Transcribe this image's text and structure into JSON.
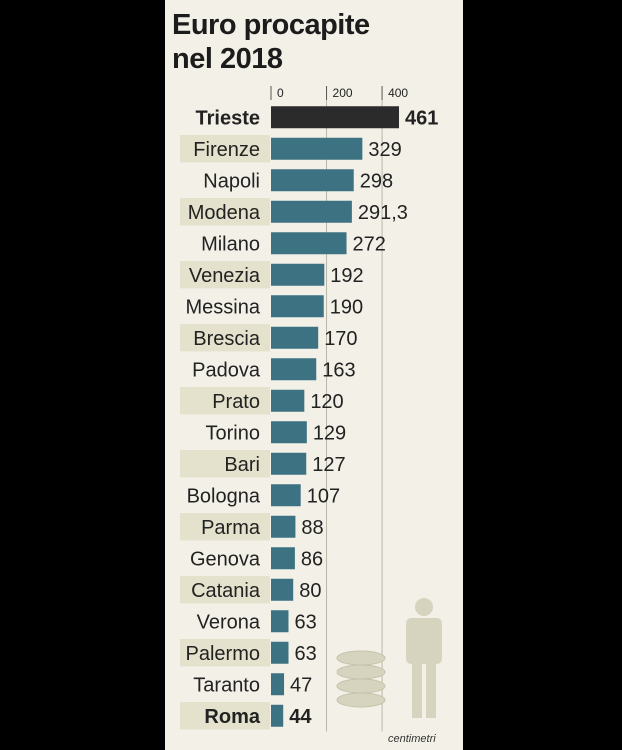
{
  "title_lines": [
    "Euro procapite",
    "nel 2018"
  ],
  "credit": "centimetri",
  "colors": {
    "background": "#f3f1e7",
    "stripe": "#e4e2cc",
    "bar": "#3d7283",
    "highlight_bar": "#2b2b2b",
    "text": "#222222"
  },
  "chart_data": {
    "type": "bar",
    "orientation": "horizontal",
    "title": "Euro procapite nel 2018",
    "xlim": [
      0,
      461
    ],
    "ticks": [
      0,
      200,
      400
    ],
    "categories": [
      "Trieste",
      "Firenze",
      "Napoli",
      "Modena",
      "Milano",
      "Venezia",
      "Messina",
      "Brescia",
      "Padova",
      "Prato",
      "Torino",
      "Bari",
      "Bologna",
      "Parma",
      "Genova",
      "Catania",
      "Verona",
      "Palermo",
      "Taranto",
      "Roma"
    ],
    "values": [
      461,
      329,
      298,
      291.3,
      272,
      192,
      190,
      170,
      163,
      120,
      129,
      127,
      107,
      88,
      86,
      80,
      63,
      63,
      47,
      44
    ],
    "value_labels": [
      "461",
      "329",
      "298",
      "291,3",
      "272",
      "192",
      "190",
      "170",
      "163",
      "120",
      "129",
      "127",
      "107",
      "88",
      "86",
      "80",
      "63",
      "63",
      "47",
      "44"
    ],
    "highlight_dark": [
      "Trieste"
    ],
    "bold_labels": [
      "Trieste",
      "Roma"
    ]
  }
}
